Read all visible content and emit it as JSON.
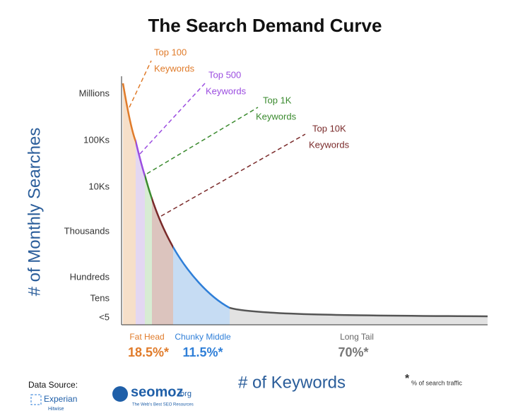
{
  "title": "The Search Demand Curve",
  "y_axis": {
    "title": "# of Monthly Searches",
    "labels": [
      "Millions",
      "100Ks",
      "10Ks",
      "Thousands",
      "Hundreds",
      "Tens",
      "<5"
    ]
  },
  "x_axis": {
    "title": "# of Keywords"
  },
  "callouts": [
    {
      "lines": [
        "Top 100",
        "Keywords"
      ]
    },
    {
      "lines": [
        "Top 500",
        "Keywords"
      ]
    },
    {
      "lines": [
        "Top 1K",
        "Keywords"
      ]
    },
    {
      "lines": [
        "Top 10K",
        "Keywords"
      ]
    }
  ],
  "segments": [
    {
      "name": "Fat Head",
      "share": "18.5%*"
    },
    {
      "name": "Chunky Middle",
      "share": "11.5%*"
    },
    {
      "name": "Long Tail",
      "share": "70%*"
    }
  ],
  "footnote": {
    "mark": "*",
    "text": "% of search traffic"
  },
  "source": {
    "label": "Data Source:",
    "name": "Experian",
    "sub": "Hitwise"
  },
  "logo": {
    "name": "seomoz",
    "suffix": ".org",
    "tagline": "The Web's Best SEO Resources"
  }
}
